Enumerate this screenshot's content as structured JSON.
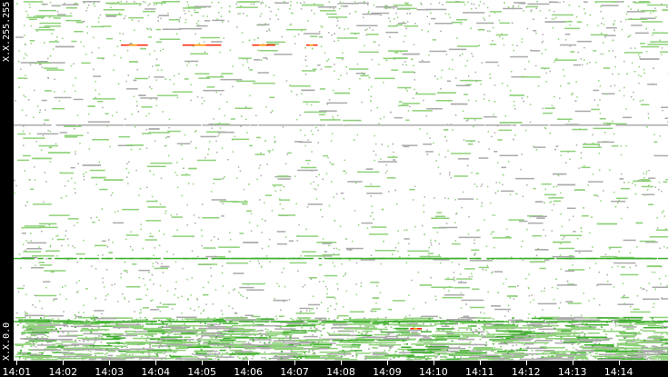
{
  "chart_data": {
    "type": "heatmap",
    "title": "",
    "xlabel": "",
    "ylabel": "",
    "x_tick_labels": [
      "14:01",
      "14:02",
      "14:03",
      "14:04",
      "14:05",
      "14:06",
      "14:07",
      "14:08",
      "14:09",
      "14:10",
      "14:11",
      "14:12",
      "14:13",
      "14:14"
    ],
    "y_tick_labels": {
      "top": "X.X.255.255",
      "bottom": "X.X.0.0"
    },
    "xlim": [
      "14:00:56",
      "14:15:04"
    ],
    "ylim": [
      "X.X.0.0",
      "X.X.255.255"
    ],
    "grid": false,
    "colors": {
      "low": "#8fd17a",
      "mid": "#40b030",
      "sparse": "#aaaaaa",
      "high": "#ff2000",
      "warm": "#ffa000"
    },
    "prominent_rows": [
      {
        "addr_octet": 224,
        "level": "high",
        "segments": [
          [
            "14:03:15",
            "14:03:50"
          ],
          [
            "14:04:35",
            "14:05:25"
          ],
          [
            "14:06:05",
            "14:06:35"
          ],
          [
            "14:07:15",
            "14:07:30"
          ]
        ]
      },
      {
        "addr_octet": 167,
        "level": "sparse",
        "segments": [
          [
            "14:00:56",
            "14:15:04"
          ]
        ]
      },
      {
        "addr_octet": 72,
        "level": "mid",
        "segments": [
          [
            "14:00:56",
            "14:15:04"
          ]
        ]
      },
      {
        "addr_octet": 27,
        "level": "mid",
        "segments": [
          [
            "14:00:56",
            "14:15:04"
          ]
        ]
      },
      {
        "addr_octet": 22,
        "level": "high",
        "segments": [
          [
            "14:09:30",
            "14:09:45"
          ]
        ]
      }
    ]
  }
}
